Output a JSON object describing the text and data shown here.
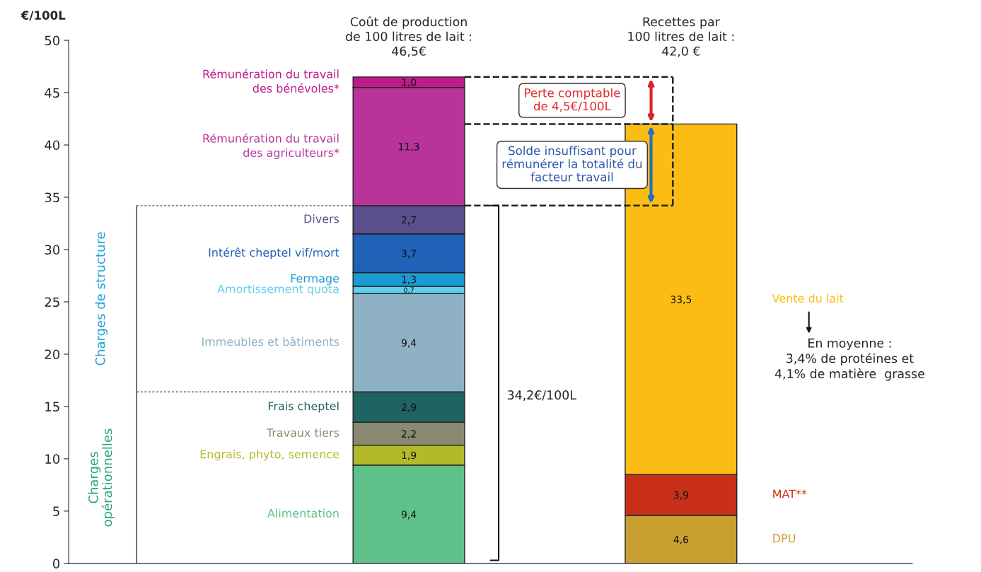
{
  "chart_data": {
    "type": "bar",
    "stacked": true,
    "ylabel": "€/100L",
    "categories": [
      null,
      null
    ],
    "ylim": [
      0,
      50
    ],
    "yticks": [
      0,
      5,
      10,
      15,
      20,
      25,
      30,
      35,
      40,
      45,
      50
    ],
    "tick_labels": "y",
    "series": [
      {
        "name": "Alimentation",
        "color": "#5ec18a",
        "values": [
          9.4,
          null
        ],
        "value_labels": [
          "9,4",
          null
        ]
      },
      {
        "name": "Engrais, phyto, semence",
        "color": "#b4b92a",
        "values": [
          1.9,
          null
        ],
        "value_labels": [
          "1,9",
          null
        ]
      },
      {
        "name": "Travaux tiers",
        "color": "#8a8a72",
        "values": [
          2.2,
          null
        ],
        "value_labels": [
          "2,2",
          null
        ]
      },
      {
        "name": "Frais cheptel",
        "color": "#1f6462",
        "values": [
          2.9,
          null
        ],
        "value_labels": [
          "2,9",
          null
        ]
      },
      {
        "name": "Immeubles et bâtiments",
        "color": "#8fb1c6",
        "values": [
          9.4,
          null
        ],
        "value_labels": [
          "9,4",
          null
        ]
      },
      {
        "name": "Amortissement quota",
        "color": "#5fd0f0",
        "values": [
          0.7,
          null
        ],
        "value_labels": [
          "0,7",
          null
        ]
      },
      {
        "name": "Fermage",
        "color": "#1c9ad6",
        "values": [
          1.3,
          null
        ],
        "value_labels": [
          "1,3",
          null
        ]
      },
      {
        "name": "Intérêt cheptel vif/mort",
        "color": "#1f62b8",
        "values": [
          3.7,
          null
        ],
        "value_labels": [
          "3,7",
          null
        ]
      },
      {
        "name": "Divers",
        "color": "#5a4e8c",
        "values": [
          2.7,
          null
        ],
        "value_labels": [
          "2,7",
          null
        ]
      },
      {
        "name": "Rémunération du travail\ndes agriculteurs*",
        "color": "#b8339a",
        "values": [
          11.3,
          null
        ],
        "value_labels": [
          "11,3",
          null
        ]
      },
      {
        "name": "Rémunération du travail\ndes bénévoles*",
        "color": "#c0198c",
        "values": [
          1.0,
          null
        ],
        "value_labels": [
          "1,0",
          null
        ]
      },
      {
        "name": "DPU",
        "color": "#c8a030",
        "values": [
          null,
          4.6
        ],
        "value_labels": [
          null,
          "4,6"
        ]
      },
      {
        "name": "MAT**",
        "color": "#c8301a",
        "values": [
          null,
          3.9
        ],
        "value_labels": [
          null,
          "3,9"
        ]
      },
      {
        "name": "Vente du lait",
        "color": "#fbbd14",
        "values": [
          null,
          33.5
        ],
        "value_labels": [
          null,
          "33,5"
        ]
      }
    ],
    "annotations": [
      "Coût de production\nde 100 litres de lait :\n46,5€",
      "Recettes par\n100 litres de lait :\n42,0 €",
      "Perte comptable\nde 4,5€/100L",
      "Solde insuffisant pour\nrémunérer la totalité du\nfacteur travail",
      "34,2€/100L",
      "En moyenne :\n3,4% de protéines et\n4,1% de matière  grasse",
      "Charges de structure",
      "Charges\nopérationnelles"
    ]
  }
}
